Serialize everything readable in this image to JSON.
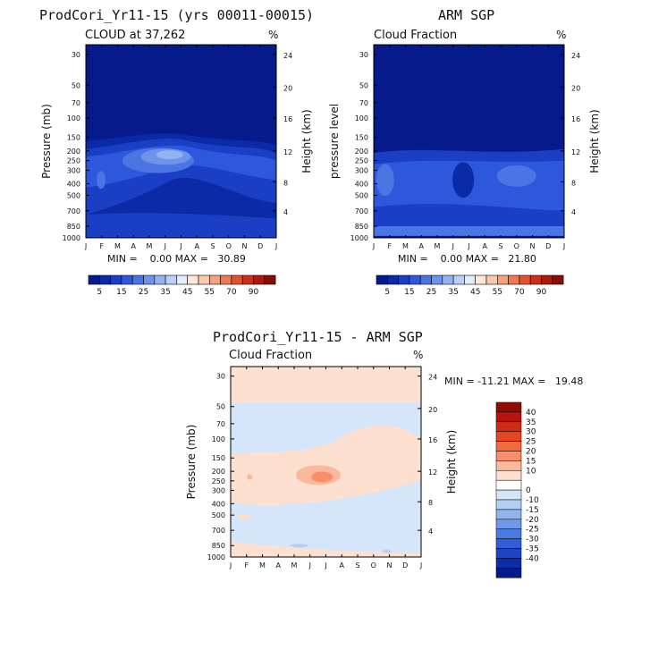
{
  "colors": {
    "pos": [
      "#ffffff",
      "#fde0cf",
      "#fbb89a",
      "#f88e6c",
      "#f2693f",
      "#e6461f",
      "#cf2a14",
      "#b4160d",
      "#8f0b05"
    ],
    "neg": [
      "#d6e6fa",
      "#b5cff3",
      "#91b4ec",
      "#6f98e6",
      "#4c7be0",
      "#2f5ed8",
      "#1e44c4",
      "#0f2ca8",
      "#061a8c"
    ],
    "seq": [
      "#061a8c",
      "#0a2aa6",
      "#1a3fc4",
      "#2e58db",
      "#4a75e3",
      "#6b94ea",
      "#93b3f0",
      "#bccff7",
      "#e3ecfb",
      "#fde8da",
      "#fbc9ad",
      "#f8a07c",
      "#f27752",
      "#e45030",
      "#cc3019",
      "#ab1a0b",
      "#8a0c05"
    ]
  },
  "chart_data": [
    {
      "type": "heatmap",
      "title": "ProdCori_Yr11-15 (yrs 00011-00015)",
      "subtitle": "CLOUD at 37,262",
      "units": "%",
      "ylabel": "Pressure (mb)",
      "ylabel_right": "Height (km)",
      "x_ticks": [
        "J",
        "F",
        "M",
        "A",
        "M",
        "J",
        "J",
        "A",
        "S",
        "O",
        "N",
        "D",
        "J"
      ],
      "y_ticks": [
        "30",
        "50",
        "70",
        "100",
        "150",
        "200",
        "250",
        "300",
        "400",
        "500",
        "700",
        "850",
        "1000"
      ],
      "y_ticks_right": [
        "24",
        "20",
        "16",
        "12",
        "8",
        "4"
      ],
      "min_max": "MIN =    0.00 MAX =   30.89",
      "colorbar_labels": [
        "5",
        "15",
        "25",
        "35",
        "45",
        "55",
        "70",
        "90"
      ],
      "min": 0.0,
      "max": 30.89
    },
    {
      "type": "heatmap",
      "title": "ARM SGP",
      "subtitle": "Cloud Fraction",
      "units": "%",
      "ylabel": "pressure level",
      "ylabel_right": "Height (km)",
      "x_ticks": [
        "J",
        "F",
        "M",
        "A",
        "M",
        "J",
        "J",
        "A",
        "S",
        "O",
        "N",
        "D",
        "J"
      ],
      "y_ticks": [
        "30",
        "50",
        "70",
        "100",
        "150",
        "200",
        "250",
        "300",
        "400",
        "500",
        "700",
        "850",
        "1000"
      ],
      "y_ticks_right": [
        "24",
        "20",
        "16",
        "12",
        "8",
        "4"
      ],
      "min_max": "MIN =    0.00 MAX =   21.80",
      "colorbar_labels": [
        "5",
        "15",
        "25",
        "35",
        "45",
        "55",
        "70",
        "90"
      ],
      "min": 0.0,
      "max": 21.8
    },
    {
      "type": "heatmap",
      "title": "ProdCori_Yr11-15 - ARM SGP",
      "subtitle": "Cloud Fraction",
      "units": "%",
      "ylabel": "Pressure (mb)",
      "ylabel_right": "Height (km)",
      "x_ticks": [
        "J",
        "F",
        "M",
        "A",
        "M",
        "J",
        "J",
        "A",
        "S",
        "O",
        "N",
        "D",
        "J"
      ],
      "y_ticks": [
        "30",
        "50",
        "70",
        "100",
        "150",
        "200",
        "250",
        "300",
        "400",
        "500",
        "700",
        "850",
        "1000"
      ],
      "y_ticks_right": [
        "24",
        "20",
        "16",
        "12",
        "8",
        "4"
      ],
      "min_max": "MIN = -11.21 MAX =   19.48",
      "colorbar_labels": [
        "40",
        "35",
        "30",
        "25",
        "20",
        "15",
        "10",
        "0",
        "-10",
        "-15",
        "-20",
        "-25",
        "-30",
        "-35",
        "-40"
      ],
      "min": -11.21,
      "max": 19.48
    }
  ]
}
